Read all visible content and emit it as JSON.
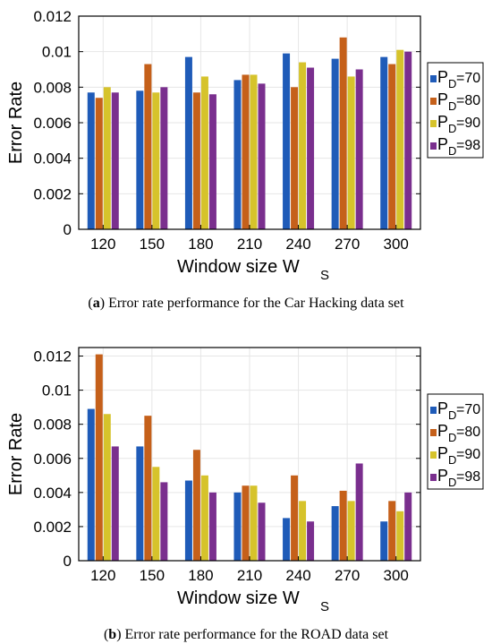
{
  "colors": {
    "series": [
      "#1f5bb8",
      "#c5601a",
      "#d6c32b",
      "#7a2f8e"
    ],
    "axis": "#000000",
    "grid": "#e6e6e6"
  },
  "captions": [
    {
      "label": "a",
      "text": "Error rate performance for the Car Hacking data set"
    },
    {
      "label": "b",
      "text": "Error rate performance for the ROAD data set"
    }
  ],
  "chart_data": [
    {
      "type": "bar",
      "xlabel_main": "Window size W",
      "xlabel_sub": "S",
      "ylabel": "Error Rate",
      "ylim": [
        0,
        0.012
      ],
      "yticks": [
        "0",
        "0.002",
        "0.004",
        "0.006",
        "0.008",
        "0.01",
        "0.012"
      ],
      "categories": [
        "120",
        "150",
        "180",
        "210",
        "240",
        "270",
        "300"
      ],
      "grid": true,
      "legend_position": "right",
      "series": [
        {
          "name_main": "P",
          "name_sub": "D",
          "name_suffix": "=70",
          "values": [
            0.0077,
            0.0078,
            0.0097,
            0.0084,
            0.0099,
            0.0096,
            0.0097
          ]
        },
        {
          "name_main": "P",
          "name_sub": "D",
          "name_suffix": "=80",
          "values": [
            0.0074,
            0.0093,
            0.0077,
            0.0087,
            0.008,
            0.0108,
            0.0093
          ]
        },
        {
          "name_main": "P",
          "name_sub": "D",
          "name_suffix": "=90",
          "values": [
            0.008,
            0.0077,
            0.0086,
            0.0087,
            0.0094,
            0.0086,
            0.0101
          ]
        },
        {
          "name_main": "P",
          "name_sub": "D",
          "name_suffix": "=98",
          "values": [
            0.0077,
            0.008,
            0.0076,
            0.0082,
            0.0091,
            0.009,
            0.01
          ]
        }
      ]
    },
    {
      "type": "bar",
      "xlabel_main": "Window size W",
      "xlabel_sub": "S",
      "ylabel": "Error Rate",
      "ylim": [
        0,
        0.0125
      ],
      "yticks": [
        "0",
        "0.002",
        "0.004",
        "0.006",
        "0.008",
        "0.01",
        "0.012"
      ],
      "categories": [
        "120",
        "150",
        "180",
        "210",
        "240",
        "270",
        "300"
      ],
      "grid": true,
      "legend_position": "right",
      "series": [
        {
          "name_main": "P",
          "name_sub": "D",
          "name_suffix": "=70",
          "values": [
            0.0089,
            0.0067,
            0.0047,
            0.004,
            0.0025,
            0.0032,
            0.0023
          ]
        },
        {
          "name_main": "P",
          "name_sub": "D",
          "name_suffix": "=80",
          "values": [
            0.0121,
            0.0085,
            0.0065,
            0.0044,
            0.005,
            0.0041,
            0.0035
          ]
        },
        {
          "name_main": "P",
          "name_sub": "D",
          "name_suffix": "=90",
          "values": [
            0.0086,
            0.0055,
            0.005,
            0.0044,
            0.0035,
            0.0035,
            0.0029
          ]
        },
        {
          "name_main": "P",
          "name_sub": "D",
          "name_suffix": "=98",
          "values": [
            0.0067,
            0.0046,
            0.004,
            0.0034,
            0.0023,
            0.0057,
            0.004
          ]
        }
      ]
    }
  ]
}
